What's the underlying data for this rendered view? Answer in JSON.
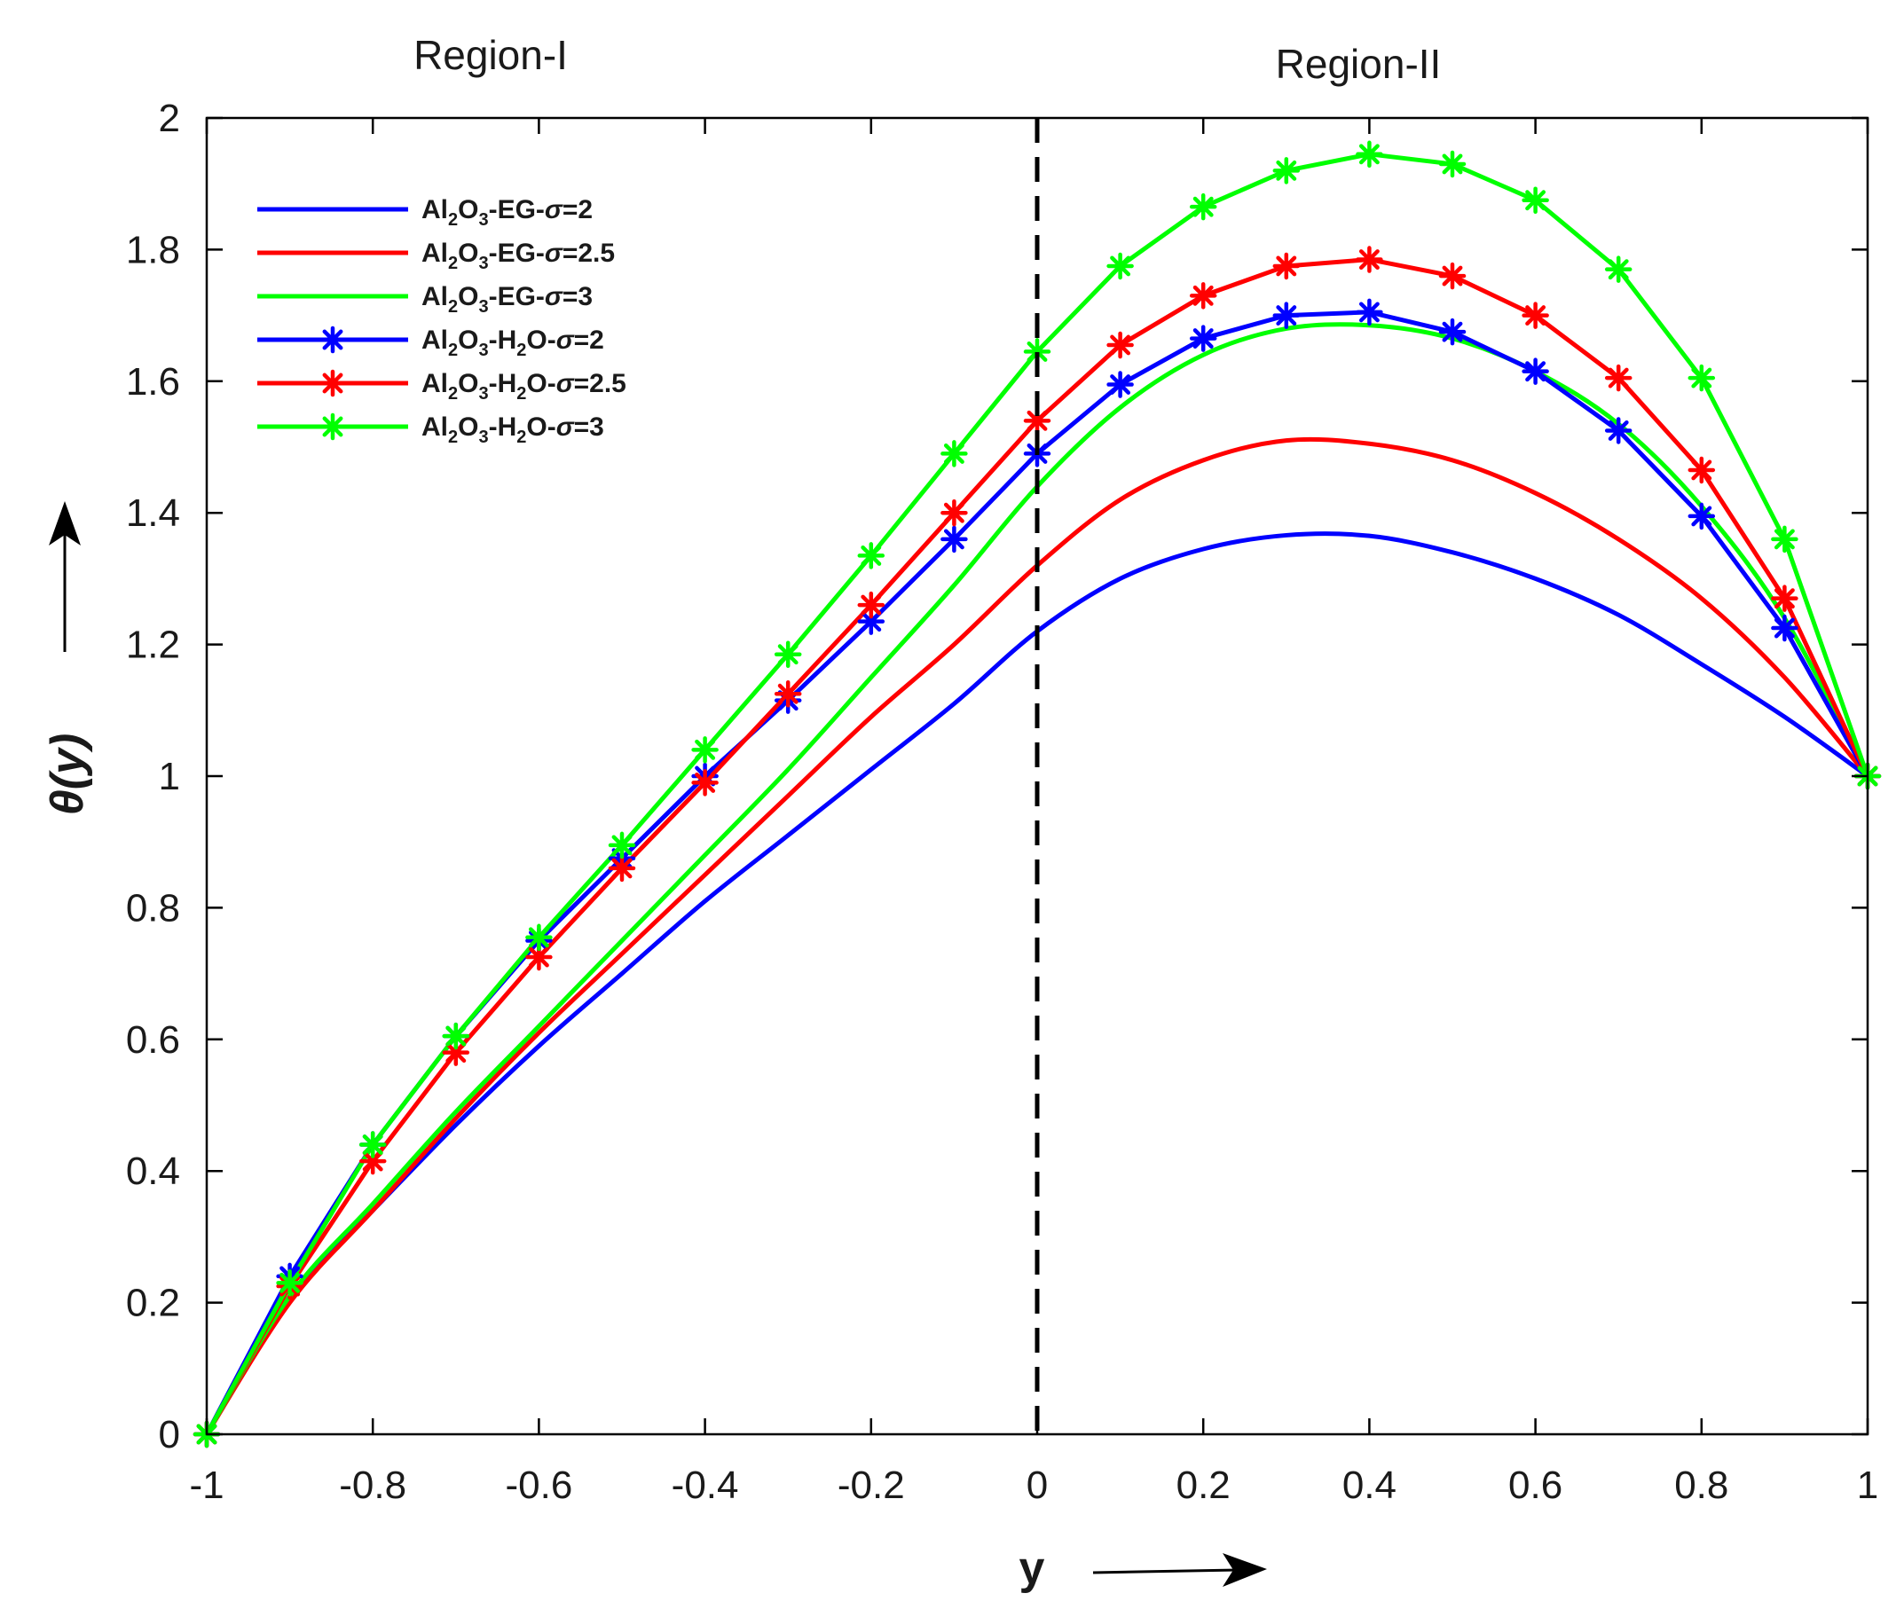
{
  "chart_data": {
    "type": "line",
    "title": "",
    "xlabel": "y",
    "ylabel": "θ(y)",
    "xlim": [
      -1,
      1
    ],
    "ylim": [
      0,
      2
    ],
    "xticks": [
      -1,
      -0.8,
      -0.6,
      -0.4,
      -0.2,
      0,
      0.2,
      0.4,
      0.6,
      0.8,
      1
    ],
    "yticks": [
      0,
      0.2,
      0.4,
      0.6,
      0.8,
      1,
      1.2,
      1.4,
      1.6,
      1.8,
      2
    ],
    "xtick_labels": [
      "-1",
      "-0.8",
      "-0.6",
      "-0.4",
      "-0.2",
      "0",
      "0.2",
      "0.4",
      "0.6",
      "0.8",
      "1"
    ],
    "ytick_labels": [
      "0",
      "0.2",
      "0.4",
      "0.6",
      "0.8",
      "1",
      "1.2",
      "1.4",
      "1.6",
      "1.8",
      "2"
    ],
    "grid": false,
    "legend_position": "top-left",
    "annotations": {
      "region_left": "Region-I",
      "region_right": "Region-II",
      "divider_x": 0
    },
    "x": [
      -1,
      -0.9,
      -0.8,
      -0.7,
      -0.6,
      -0.5,
      -0.4,
      -0.3,
      -0.2,
      -0.1,
      0,
      0.1,
      0.2,
      0.3,
      0.4,
      0.5,
      0.6,
      0.7,
      0.8,
      0.9,
      1
    ],
    "series": [
      {
        "name": "Al2O3-EG-σ=2",
        "label_parts": [
          "Al",
          "2",
          "O",
          "3",
          "-EG-",
          "σ",
          "=2"
        ],
        "color": "#0000ff",
        "markers": false,
        "values": [
          0,
          0.21,
          0.34,
          0.47,
          0.59,
          0.7,
          0.81,
          0.91,
          1.01,
          1.11,
          1.22,
          1.3,
          1.345,
          1.366,
          1.365,
          1.34,
          1.3,
          1.245,
          1.17,
          1.09,
          1.0
        ]
      },
      {
        "name": "Al2O3-EG-σ=2.5",
        "label_parts": [
          "Al",
          "2",
          "O",
          "3",
          "-EG-",
          "σ",
          "=2.5"
        ],
        "color": "#ff0000",
        "markers": false,
        "values": [
          0,
          0.2,
          0.34,
          0.48,
          0.61,
          0.73,
          0.85,
          0.97,
          1.09,
          1.2,
          1.32,
          1.42,
          1.48,
          1.51,
          1.505,
          1.48,
          1.43,
          1.36,
          1.27,
          1.15,
          1.0
        ]
      },
      {
        "name": "Al2O3-EG-σ=3",
        "label_parts": [
          "Al",
          "2",
          "O",
          "3",
          "-EG-",
          "σ",
          "=3"
        ],
        "color": "#00ff00",
        "markers": false,
        "values": [
          0,
          0.21,
          0.35,
          0.49,
          0.62,
          0.75,
          0.88,
          1.01,
          1.15,
          1.29,
          1.44,
          1.56,
          1.64,
          1.68,
          1.685,
          1.665,
          1.615,
          1.535,
          1.41,
          1.24,
          1.0
        ]
      },
      {
        "name": "Al2O3-H2O-σ=2",
        "label_parts": [
          "Al",
          "2",
          "O",
          "3",
          "-H",
          "2",
          "O-",
          "σ",
          "=2"
        ],
        "color": "#0000ff",
        "markers": true,
        "values": [
          0,
          0.24,
          0.44,
          0.605,
          0.75,
          0.875,
          1.0,
          1.115,
          1.235,
          1.36,
          1.49,
          1.595,
          1.665,
          1.7,
          1.705,
          1.675,
          1.615,
          1.525,
          1.395,
          1.225,
          1.0
        ]
      },
      {
        "name": "Al2O3-H2O-σ=2.5",
        "label_parts": [
          "Al",
          "2",
          "O",
          "3",
          "-H",
          "2",
          "O-",
          "σ",
          "=2.5"
        ],
        "color": "#ff0000",
        "markers": true,
        "values": [
          0,
          0.225,
          0.415,
          0.58,
          0.725,
          0.86,
          0.99,
          1.125,
          1.26,
          1.4,
          1.54,
          1.655,
          1.73,
          1.775,
          1.785,
          1.76,
          1.7,
          1.605,
          1.465,
          1.27,
          1.0
        ]
      },
      {
        "name": "Al2O3-H2O-σ=3",
        "label_parts": [
          "Al",
          "2",
          "O",
          "3",
          "-H",
          "2",
          "O-",
          "σ",
          "=3"
        ],
        "color": "#00ff00",
        "markers": true,
        "values": [
          0,
          0.23,
          0.44,
          0.605,
          0.755,
          0.895,
          1.04,
          1.185,
          1.335,
          1.49,
          1.645,
          1.775,
          1.865,
          1.92,
          1.945,
          1.93,
          1.875,
          1.77,
          1.605,
          1.36,
          1.0
        ]
      }
    ]
  }
}
